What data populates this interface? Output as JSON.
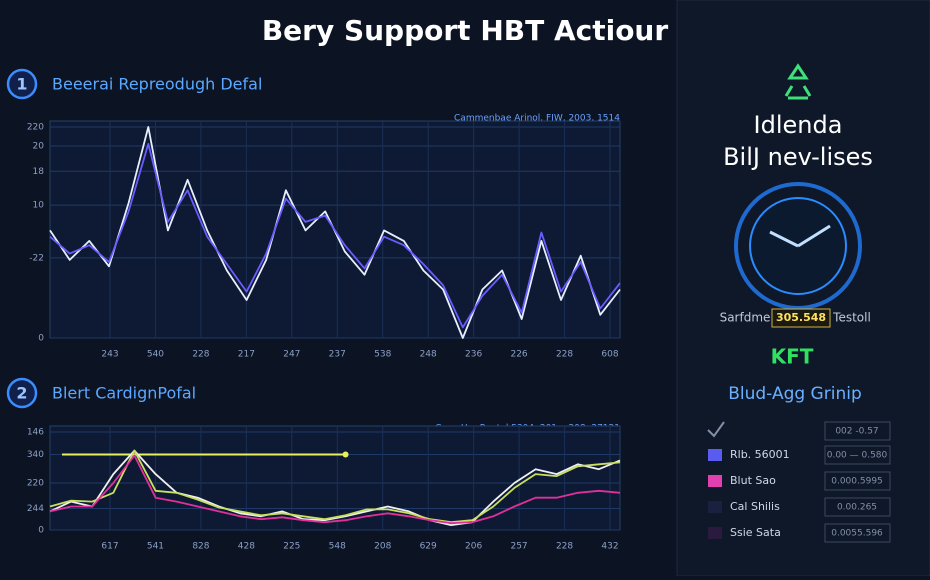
{
  "header": {
    "title": "Bery Support HBT Actiour"
  },
  "panels": [
    {
      "number": "1",
      "title": "Beeerai Repreodugh Defal",
      "chart": {
        "type": "line",
        "legend_text": "Cammenbae Arinol, FIW, 2003, 1514",
        "categories": [
          "243",
          "540",
          "228",
          "217",
          "247",
          "237",
          "538",
          "248",
          "236",
          "226",
          "228",
          "608"
        ],
        "ylim": [
          0,
          100
        ],
        "yticks": [
          {
            "value": 100,
            "label": "220"
          },
          {
            "value": 91,
            "label": "20"
          },
          {
            "value": 79,
            "label": "18"
          },
          {
            "value": 63,
            "label": "10"
          },
          {
            "value": 38,
            "label": "-22"
          },
          0
        ],
        "grid": true,
        "series": [
          {
            "color": "#e8f0ff",
            "values": [
              51,
              37,
              46,
              34,
              64,
              100,
              51,
              75,
              51,
              32,
              18,
              37,
              70,
              51,
              60,
              41,
              30,
              51,
              46,
              32,
              23,
              0,
              23,
              32,
              9,
              46,
              18,
              39,
              11,
              23
            ]
          },
          {
            "color": "#6a5cff",
            "values": [
              48,
              40,
              44,
              36,
              60,
              92,
              55,
              70,
              48,
              35,
              22,
              40,
              66,
              55,
              58,
              44,
              33,
              48,
              44,
              35,
              25,
              5,
              20,
              30,
              12,
              50,
              22,
              36,
              14,
              26
            ]
          }
        ]
      }
    },
    {
      "number": "2",
      "title": "Blert CardignPofal",
      "chart": {
        "type": "line",
        "legend_text": "Coae Her Rentel 5304, 201, . 208, 27121",
        "categories": [
          "617",
          "541",
          "828",
          "428",
          "225",
          "548",
          "208",
          "629",
          "206",
          "257",
          "228",
          "432"
        ],
        "ylim": [
          0,
          100
        ],
        "yticks": [
          {
            "value": 100,
            "label": "146"
          },
          {
            "value": 77,
            "label": "340"
          },
          {
            "value": 48,
            "label": "220"
          },
          {
            "value": 22,
            "label": "244"
          },
          0
        ],
        "grid": true,
        "reference": {
          "value": 77,
          "color": "#e4f060",
          "span": [
            0,
            14
          ]
        },
        "series": [
          {
            "color": "#f0f0f0",
            "values": [
              19,
              29,
              24,
              57,
              81,
              57,
              38,
              33,
              24,
              17,
              14,
              19,
              11,
              10,
              14,
              19,
              24,
              19,
              10,
              5,
              8,
              29,
              48,
              62,
              57,
              67,
              62,
              71
            ]
          },
          {
            "color": "#c8e060",
            "values": [
              24,
              30,
              29,
              38,
              81,
              40,
              38,
              31,
              23,
              19,
              15,
              17,
              14,
              11,
              15,
              21,
              21,
              17,
              11,
              8,
              10,
              24,
              43,
              57,
              55,
              65,
              67,
              69
            ]
          },
          {
            "color": "#e0309a",
            "values": [
              19,
              24,
              24,
              48,
              76,
              33,
              29,
              24,
              19,
              14,
              11,
              13,
              10,
              8,
              10,
              14,
              17,
              14,
              10,
              7,
              8,
              14,
              24,
              33,
              33,
              38,
              40,
              38
            ]
          }
        ]
      }
    }
  ],
  "sidebar": {
    "title_line1": "Idlenda",
    "title_line2": "BilJ nev-lises",
    "gauge_left": "Sarfdme",
    "gauge_value": "305.548",
    "gauge_right": "Testoll",
    "badge": "KFT",
    "group_title": "Blud-Agg Grinip",
    "top_box": "002 -0.57",
    "rows": [
      {
        "label": "Rlb. 56001",
        "value": "0.00 — 0.580",
        "color": "#5a5cf0"
      },
      {
        "label": "Blut Sao",
        "value": "0.000.5995",
        "color": "#e040b0"
      },
      {
        "label": "Cal Shilis",
        "value": "0.00.265",
        "color": "#1a2040"
      },
      {
        "label": "Ssie Sata",
        "value": "0.0055.596",
        "color": "#2a1a40"
      }
    ]
  }
}
